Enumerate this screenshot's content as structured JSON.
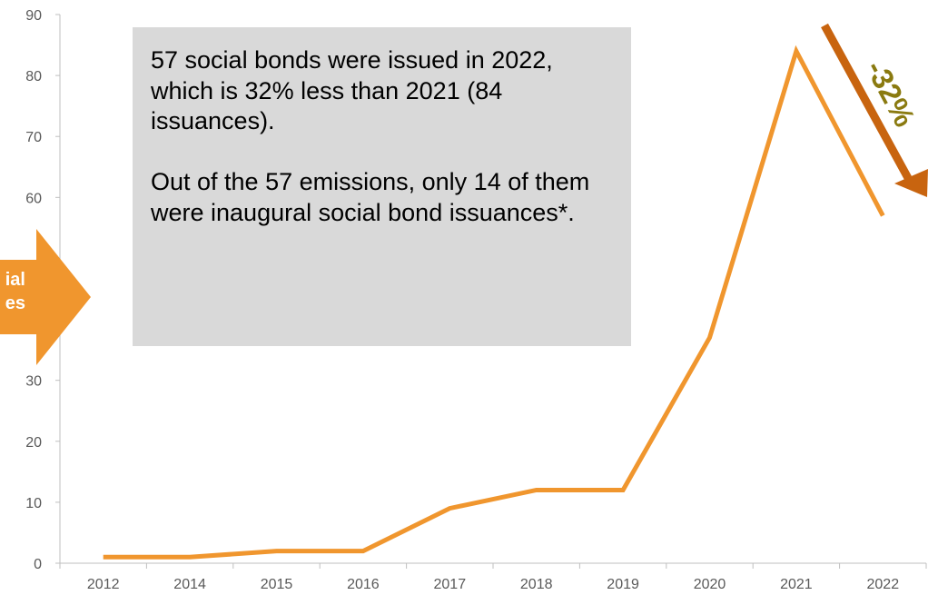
{
  "chart_data": {
    "type": "line",
    "categories": [
      "2012",
      "2014",
      "2015",
      "2016",
      "2017",
      "2018",
      "2019",
      "2020",
      "2021",
      "2022"
    ],
    "series": [
      {
        "values": [
          1,
          1,
          2,
          2,
          9,
          12,
          12,
          37,
          84,
          57
        ]
      }
    ],
    "ylim": [
      0,
      90
    ],
    "yticks": [
      "0",
      "10",
      "20",
      "30",
      "",
      "",
      "60",
      "70",
      "80",
      "90"
    ],
    "grid": false,
    "line_color": "#f0962e"
  },
  "callout": {
    "paragraph1": "57 social bonds were issued in 2022, which is 32% less than 2021 (84 issuances).",
    "paragraph2": "Out of the 57 emissions, only 14 of them were inaugural social bond issuances*."
  },
  "side_arrow": {
    "line1": "ial",
    "line2": "es",
    "color": "#f0962e"
  },
  "change_indicator": {
    "label": "-32%",
    "arrow_color": "#c8640f",
    "text_color": "#8a7a10"
  }
}
